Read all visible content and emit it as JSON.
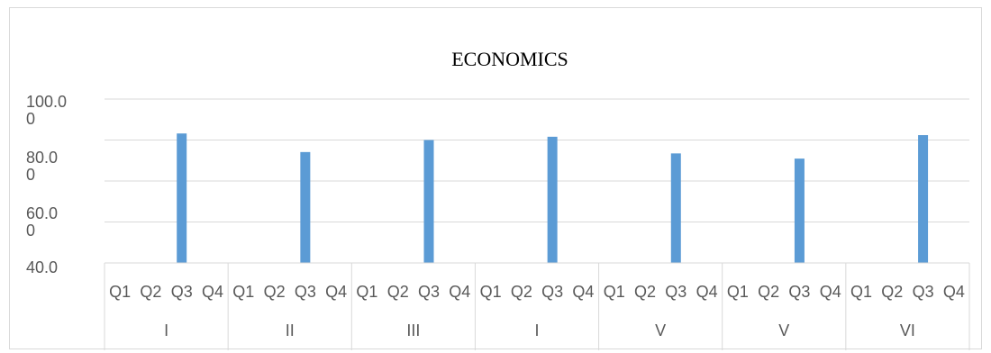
{
  "chart_data": {
    "type": "bar",
    "title": "ECONOMICS",
    "xlabel": "",
    "ylabel": "",
    "ylim": [
      40,
      100
    ],
    "grid": true,
    "legend": "none",
    "y_tick_labels": [
      {
        "value": 100,
        "lines": [
          "100.0",
          "0"
        ]
      },
      {
        "value": 80,
        "lines": [
          "80.0",
          "0"
        ]
      },
      {
        "value": 60,
        "lines": [
          "60.0",
          "0"
        ]
      },
      {
        "value": 40,
        "lines": [
          "40.0"
        ]
      }
    ],
    "quarters": [
      "Q1",
      "Q2",
      "Q3",
      "Q4",
      "Q1",
      "Q2",
      "Q3",
      "Q4",
      "Q1",
      "Q2",
      "Q3",
      "Q4",
      "Q1",
      "Q2",
      "Q3",
      "Q4",
      "Q1",
      "Q2",
      "Q3",
      "Q4",
      "Q1",
      "Q2",
      "Q3",
      "Q4",
      "Q1",
      "Q2",
      "Q3",
      "Q4"
    ],
    "groups": [
      "I",
      "II",
      "III",
      "I",
      "V",
      "V",
      "VI"
    ],
    "values": [
      null,
      null,
      87.4,
      null,
      null,
      null,
      80.6,
      null,
      null,
      null,
      85.0,
      null,
      null,
      null,
      86.2,
      null,
      null,
      null,
      80.1,
      null,
      null,
      null,
      78.2,
      null,
      null,
      null,
      86.8,
      null
    ],
    "colors": {
      "bar": "#5b9bd5",
      "grid": "#d9d9d9",
      "text": "#595959"
    }
  }
}
